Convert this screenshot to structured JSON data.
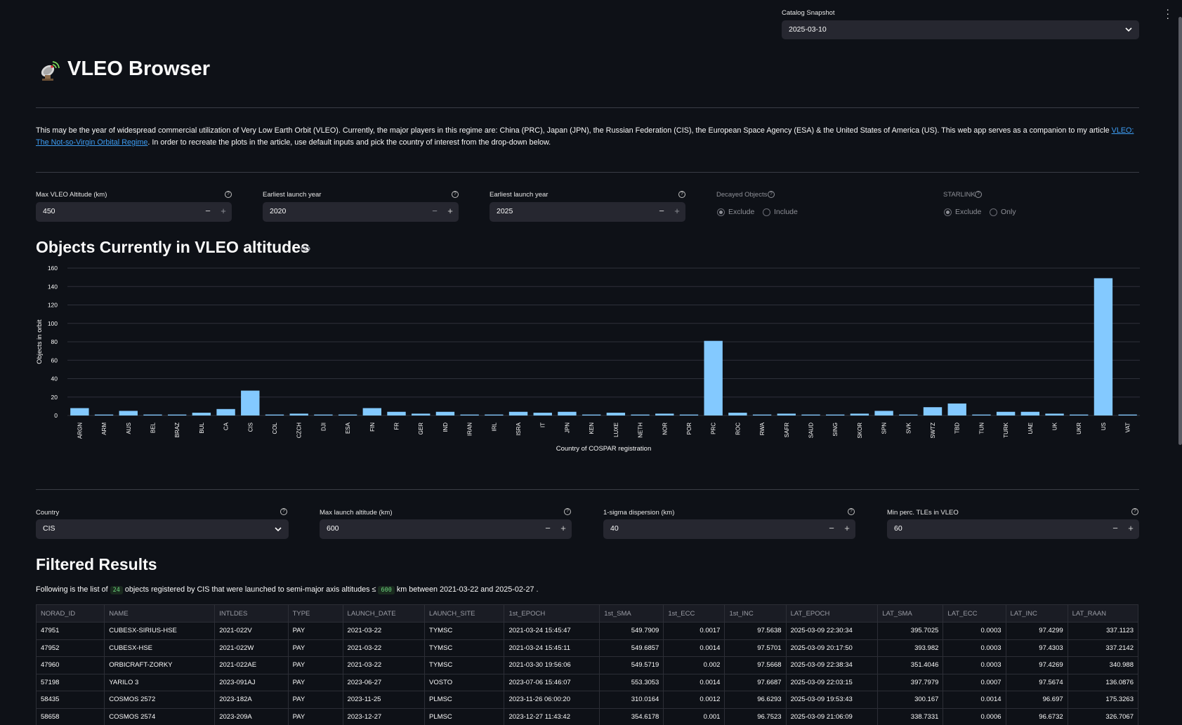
{
  "header": {
    "snapshot_label": "Catalog Snapshot",
    "snapshot_value": "2025-03-10",
    "app_title": "VLEO Browser",
    "app_icon": "satellite-antenna-icon"
  },
  "intro": {
    "text_before": "This may be the year of widespread commercial utilization of Very Low Earth Orbit (VLEO). Currently, the major players in this regime are: China (PRC), Japan (JPN), the Russian Federation (CIS), the European Space Agency (ESA) & the United States of America (US). This web app serves as a companion to my article ",
    "link_text": "VLEO: The Not-so-Virgin Orbital Regime",
    "text_after": ". In order to recreate the plots in the article, use default inputs and pick the country of interest from the drop-down below."
  },
  "controls": {
    "max_alt_label": "Max VLEO Altitude (km)",
    "max_alt_value": "450",
    "earliest_year_label": "Earliest launch year",
    "earliest_year_value": "2020",
    "latest_year_label": "Earliest launch year",
    "latest_year_value": "2025",
    "decayed_label": "Decayed Objects",
    "decayed_opt1": "Exclude",
    "decayed_opt2": "Include",
    "starlink_label": "STARLINK",
    "starlink_opt1": "Exclude",
    "starlink_opt2": "Only",
    "minus": "−",
    "plus": "+"
  },
  "section1_title": "Objects Currently in VLEO altitudes",
  "chart_data": {
    "type": "bar",
    "title": "Objects Currently in VLEO altitudes",
    "xlabel": "Country of COSPAR registration",
    "ylabel": "Objects in orbit",
    "ylim": [
      0,
      160
    ],
    "yticks": [
      0,
      20,
      40,
      60,
      80,
      100,
      120,
      140,
      160
    ],
    "categories": [
      "ARGN",
      "ARM",
      "AUS",
      "BEL",
      "BRAZ",
      "BUL",
      "CA",
      "CIS",
      "COL",
      "CZCH",
      "DJI",
      "ESA",
      "FIN",
      "FR",
      "GER",
      "IND",
      "IRAN",
      "IRL",
      "ISRA",
      "IT",
      "JPN",
      "KEN",
      "LUXE",
      "NETH",
      "NOR",
      "POR",
      "PRC",
      "ROC",
      "RWA",
      "SAFR",
      "SAUD",
      "SING",
      "SKOR",
      "SPN",
      "SVK",
      "SWTZ",
      "TBD",
      "TUN",
      "TURK",
      "UAE",
      "UK",
      "UKR",
      "US",
      "VAT"
    ],
    "values": [
      8,
      1,
      5,
      1,
      1,
      3,
      7,
      27,
      1,
      2,
      1,
      1,
      8,
      4,
      2,
      4,
      1,
      1,
      4,
      3,
      4,
      1,
      3,
      1,
      2,
      1,
      81,
      3,
      1,
      2,
      1,
      1,
      2,
      5,
      1,
      9,
      13,
      1,
      4,
      4,
      2,
      1,
      149,
      1
    ],
    "bar_color": "#83c9ff",
    "grid": true
  },
  "filters": {
    "country_label": "Country",
    "country_value": "CIS",
    "max_launch_label": "Max launch altitude (km)",
    "max_launch_value": "600",
    "sigma_label": "1-sigma dispersion (km)",
    "sigma_value": "40",
    "min_perc_label": "Min perc. TLEs in VLEO",
    "min_perc_value": "60"
  },
  "section2_title": "Filtered Results",
  "summary": {
    "prefix": "Following is the list of ",
    "count": "24",
    "middle": " objects registered by CIS that were launched to semi-major axis altitudes ≤ ",
    "altitude": "600",
    "suffix": " km between 2021-03-22 and 2025-02-27 ."
  },
  "table": {
    "columns": [
      "NORAD_ID",
      "NAME",
      "INTLDES",
      "TYPE",
      "LAUNCH_DATE",
      "LAUNCH_SITE",
      "1st_EPOCH",
      "1st_SMA",
      "1st_ECC",
      "1st_INC",
      "LAT_EPOCH",
      "LAT_SMA",
      "LAT_ECC",
      "LAT_INC",
      "LAT_RAAN"
    ],
    "rows": [
      [
        "47951",
        "CUBESX-SIRIUS-HSE",
        "2021-022V",
        "PAY",
        "2021-03-22",
        "TYMSC",
        "2021-03-24 15:45:47",
        "549.7909",
        "0.0017",
        "97.5638",
        "2025-03-09 22:30:34",
        "395.7025",
        "0.0003",
        "97.4299",
        "337.1123"
      ],
      [
        "47952",
        "CUBESX-HSE",
        "2021-022W",
        "PAY",
        "2021-03-22",
        "TYMSC",
        "2021-03-24 15:45:11",
        "549.6857",
        "0.0014",
        "97.5701",
        "2025-03-09 20:17:50",
        "393.982",
        "0.0003",
        "97.4303",
        "337.2142"
      ],
      [
        "47960",
        "ORBICRAFT-ZORKY",
        "2021-022AE",
        "PAY",
        "2021-03-22",
        "TYMSC",
        "2021-03-30 19:56:06",
        "549.5719",
        "0.002",
        "97.5668",
        "2025-03-09 22:38:34",
        "351.4046",
        "0.0003",
        "97.4269",
        "340.988"
      ],
      [
        "57198",
        "YARILO 3",
        "2023-091AJ",
        "PAY",
        "2023-06-27",
        "VOSTO",
        "2023-07-06 15:46:07",
        "553.3053",
        "0.0014",
        "97.6687",
        "2025-03-09 22:03:15",
        "397.7979",
        "0.0007",
        "97.5674",
        "136.0876"
      ],
      [
        "58435",
        "COSMOS 2572",
        "2023-182A",
        "PAY",
        "2023-11-25",
        "PLMSC",
        "2023-11-26 06:00:20",
        "310.0164",
        "0.0012",
        "96.6293",
        "2025-03-09 19:53:43",
        "300.167",
        "0.0014",
        "96.697",
        "175.3263"
      ],
      [
        "58658",
        "COSMOS 2574",
        "2023-209A",
        "PAY",
        "2023-12-27",
        "PLMSC",
        "2023-12-27 11:43:42",
        "354.6178",
        "0.001",
        "96.7523",
        "2025-03-09 21:06:09",
        "338.7331",
        "0.0006",
        "96.6732",
        "326.7067"
      ]
    ]
  }
}
